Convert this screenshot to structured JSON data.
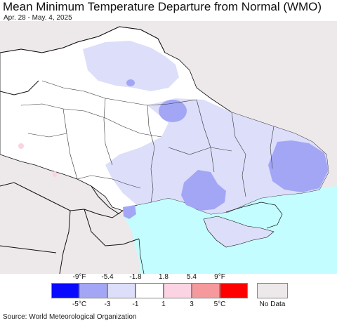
{
  "title": "Mean Minimum Temperature Departure from Normal (WMO)",
  "subtitle": "Apr. 28 - May. 4, 2025",
  "source": "Source: World Meteorological Organization",
  "legend": {
    "fahrenheit_labels": [
      "-9°F",
      "-5.4",
      "-1.8",
      "1.8",
      "5.4",
      "9°F"
    ],
    "celsius_labels": [
      "-5°C",
      "-3",
      "-1",
      "1",
      "3",
      "5°C"
    ],
    "bins": [
      {
        "color": "#0a0aff"
      },
      {
        "color": "#a3a6f5"
      },
      {
        "color": "#dcdefa"
      },
      {
        "color": "#ffffff"
      },
      {
        "color": "#fbd3e2"
      },
      {
        "color": "#f6999c"
      },
      {
        "color": "#ff0000"
      }
    ],
    "no_data_label": "No Data",
    "no_data_color": "#ede8ea"
  },
  "colors": {
    "sea": "#c4fdff",
    "no_data_land": "#ede8ea",
    "border": "#111111"
  }
}
